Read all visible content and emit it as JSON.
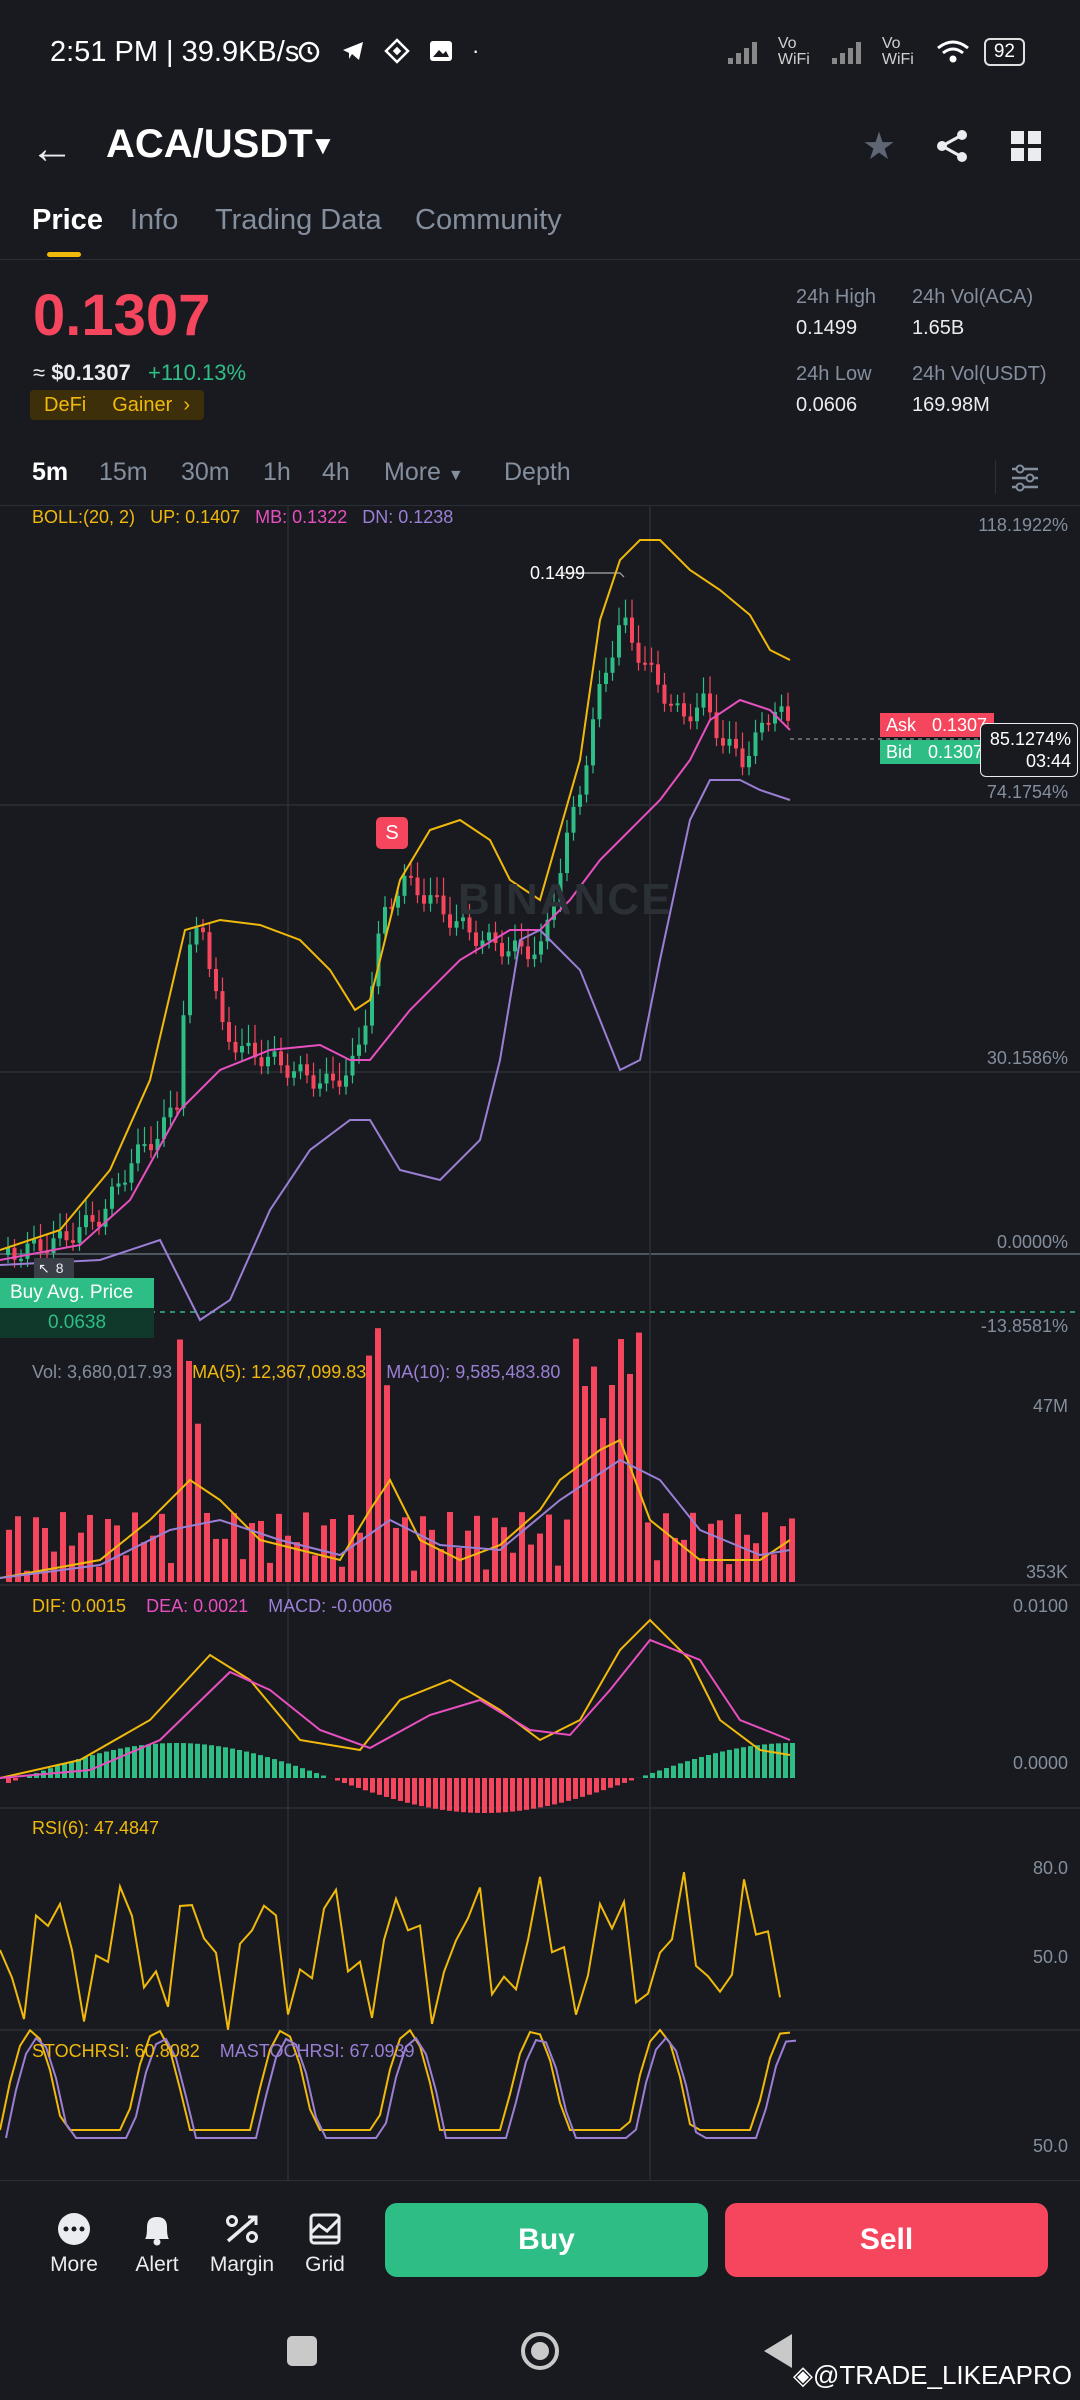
{
  "status_bar": {
    "time": "2:51 PM | 39.9KB/s",
    "battery": "92",
    "signal_label_1": "Vo WiFi",
    "signal_label_2": "Vo WiFi"
  },
  "header": {
    "pair": "ACA/USDT"
  },
  "tabs": [
    {
      "label": "Price"
    },
    {
      "label": "Info"
    },
    {
      "label": "Trading Data"
    },
    {
      "label": "Community"
    }
  ],
  "price_panel": {
    "last_price": "0.1307",
    "fiat_prefix": "≈ ",
    "fiat_value": "$0.1307",
    "change": "+110.13%",
    "tags": [
      "DeFi",
      "Gainer"
    ],
    "high_label": "24h High",
    "high_value": "0.1499",
    "low_label": "24h Low",
    "low_value": "0.0606",
    "vol_base_label": "24h Vol(ACA)",
    "vol_base_value": "1.65B",
    "vol_quote_label": "24h Vol(USDT)",
    "vol_quote_value": "169.98M"
  },
  "intervals": {
    "items": [
      "5m",
      "15m",
      "30m",
      "1h",
      "4h"
    ],
    "more": "More",
    "depth": "Depth"
  },
  "chart": {
    "boll_label": "BOLL:(20, 2)",
    "boll_up": "UP: 0.1407",
    "boll_mb": "MB: 0.1322",
    "boll_dn": "DN: 0.1238",
    "peak_label": "0.1499",
    "sell_marker": "S",
    "watermark": "BINANCE",
    "ask_label": "Ask",
    "ask_value": "0.1307",
    "bid_label": "Bid",
    "bid_value": "0.1307",
    "countdown_pct": "85.1274%",
    "countdown_time": "03:44",
    "axis": [
      "118.1922%",
      "74.1754%",
      "30.1586%",
      "0.0000%",
      "-13.8581%"
    ],
    "buy_avg_label": "Buy Avg. Price",
    "buy_avg_value": "0.0638",
    "order_count": "8",
    "vol_label": "Vol: 3,680,017.93",
    "vol_ma5": "MA(5): 12,367,099.83",
    "vol_ma10": "MA(10): 9,585,483.80",
    "vol_axis_top": "47M",
    "vol_axis_bottom": "353K",
    "macd_dif": "DIF: 0.0015",
    "macd_dea": "DEA: 0.0021",
    "macd_val": "MACD: -0.0006",
    "macd_axis_top": "0.0100",
    "macd_axis_zero": "0.0000",
    "rsi_label": "RSI(6): 47.4847",
    "rsi_axis_80": "80.0",
    "rsi_axis_50": "50.0",
    "stoch_label": "STOCHRSI: 60.8082",
    "mastoch_label": "MASTOCHRSI: 67.0939",
    "stoch_axis_50": "50.0"
  },
  "actions": {
    "more": "More",
    "alert": "Alert",
    "margin": "Margin",
    "grid": "Grid",
    "buy": "Buy",
    "sell": "Sell"
  },
  "credit": "@TRADE_LIKEAPRO",
  "colors": {
    "up": "#2ebd85",
    "down": "#f6465d",
    "accent": "#f0b90b",
    "pink": "#e84fbf",
    "purple": "#9b7fd4"
  }
}
